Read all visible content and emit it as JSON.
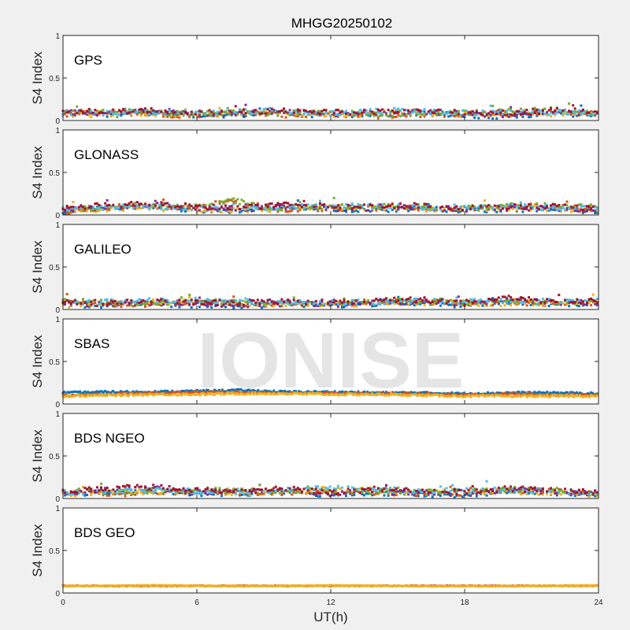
{
  "title": "MHGG20250102",
  "watermark": "IONISE",
  "chart_data": {
    "type": "scatter",
    "xlabel": "UT(h)",
    "ylabel": "S4 Index",
    "xlim": [
      0,
      24
    ],
    "ylim": [
      0,
      1
    ],
    "xticks": [
      0,
      6,
      12,
      18,
      24
    ],
    "yticks": [
      0,
      0.5,
      1
    ],
    "grid": false,
    "colors": [
      "#0072BD",
      "#D95319",
      "#EDB120",
      "#7E2F8E",
      "#77AC30",
      "#4DBEEE",
      "#A2142F"
    ],
    "panels": [
      {
        "name": "GPS",
        "series_count": 7,
        "series": [
          {
            "x": [
              0,
              2,
              4,
              6,
              8,
              10,
              12,
              14,
              16,
              18,
              20,
              22,
              24
            ],
            "y": [
              0.1,
              0.09,
              0.11,
              0.08,
              0.09,
              0.1,
              0.08,
              0.09,
              0.11,
              0.08,
              0.07,
              0.1,
              0.09
            ]
          },
          {
            "x": [
              0,
              2,
              4,
              6,
              8,
              10,
              12,
              14,
              16,
              18,
              20,
              22,
              24
            ],
            "y": [
              0.08,
              0.12,
              0.09,
              0.07,
              0.1,
              0.08,
              0.09,
              0.07,
              0.08,
              0.09,
              0.1,
              0.13,
              0.09
            ]
          },
          {
            "x": [
              0,
              3,
              6,
              9,
              12,
              15,
              18,
              21,
              24
            ],
            "y": [
              0.07,
              0.09,
              0.08,
              0.1,
              0.07,
              0.11,
              0.08,
              0.09,
              0.08
            ]
          }
        ]
      },
      {
        "name": "GLONASS",
        "series_count": 7,
        "series": [
          {
            "x": [
              0,
              2,
              4,
              6,
              8,
              10,
              12,
              14,
              16,
              18,
              20,
              22,
              24
            ],
            "y": [
              0.06,
              0.1,
              0.12,
              0.08,
              0.07,
              0.1,
              0.09,
              0.08,
              0.1,
              0.07,
              0.09,
              0.08,
              0.07
            ]
          },
          {
            "x": [
              0,
              3,
              6,
              7.5,
              9,
              12,
              15,
              18,
              21,
              24
            ],
            "y": [
              0.05,
              0.12,
              0.1,
              0.18,
              0.08,
              0.09,
              0.1,
              0.08,
              0.11,
              0.09
            ]
          },
          {
            "x": [
              0,
              4,
              8,
              12,
              16,
              20,
              24
            ],
            "y": [
              0.07,
              0.09,
              0.06,
              0.1,
              0.08,
              0.09,
              0.07
            ]
          }
        ]
      },
      {
        "name": "GALILEO",
        "series_count": 7,
        "series": [
          {
            "x": [
              0,
              2,
              4,
              6,
              8,
              10,
              12,
              14,
              16,
              18,
              20,
              22,
              24
            ],
            "y": [
              0.08,
              0.06,
              0.09,
              0.07,
              0.06,
              0.08,
              0.07,
              0.09,
              0.1,
              0.07,
              0.12,
              0.08,
              0.09
            ]
          },
          {
            "x": [
              0,
              3,
              6,
              9,
              12,
              15,
              18,
              21,
              24
            ],
            "y": [
              0.1,
              0.07,
              0.09,
              0.08,
              0.07,
              0.11,
              0.08,
              0.09,
              0.08
            ]
          },
          {
            "x": [
              0,
              4,
              8,
              12,
              16,
              20,
              24
            ],
            "y": [
              0.06,
              0.1,
              0.08,
              0.07,
              0.09,
              0.08,
              0.1
            ]
          }
        ]
      },
      {
        "name": "SBAS",
        "series_count": 3,
        "series": [
          {
            "x": [
              0,
              2,
              4,
              6,
              8,
              10,
              12,
              14,
              16,
              18,
              20,
              22,
              24
            ],
            "y": [
              0.14,
              0.15,
              0.15,
              0.16,
              0.17,
              0.15,
              0.15,
              0.14,
              0.14,
              0.13,
              0.14,
              0.14,
              0.13
            ]
          },
          {
            "x": [
              0,
              2,
              4,
              6,
              8,
              10,
              12,
              14,
              16,
              18,
              20,
              22,
              24
            ],
            "y": [
              0.1,
              0.12,
              0.13,
              0.14,
              0.14,
              0.13,
              0.13,
              0.12,
              0.12,
              0.11,
              0.12,
              0.11,
              0.11
            ]
          },
          {
            "x": [
              0,
              2,
              4,
              6,
              8,
              10,
              12,
              14,
              16,
              18,
              20,
              22,
              24
            ],
            "y": [
              0.09,
              0.1,
              0.11,
              0.11,
              0.12,
              0.12,
              0.11,
              0.11,
              0.1,
              0.09,
              0.09,
              0.09,
              0.09
            ]
          }
        ]
      },
      {
        "name": "BDS NGEO",
        "series_count": 7,
        "series": [
          {
            "x": [
              0,
              2,
              4,
              6,
              8,
              10,
              12,
              14,
              16,
              18,
              20,
              22,
              24
            ],
            "y": [
              0.07,
              0.1,
              0.12,
              0.08,
              0.07,
              0.1,
              0.06,
              0.09,
              0.07,
              0.06,
              0.1,
              0.08,
              0.07
            ]
          },
          {
            "x": [
              0,
              3,
              6,
              9,
              12,
              15,
              18,
              21,
              24
            ],
            "y": [
              0.09,
              0.07,
              0.1,
              0.08,
              0.09,
              0.07,
              0.08,
              0.11,
              0.07
            ]
          },
          {
            "x": [
              0,
              4,
              8,
              12,
              16,
              20,
              24
            ],
            "y": [
              0.06,
              0.09,
              0.07,
              0.12,
              0.08,
              0.09,
              0.06
            ]
          }
        ]
      },
      {
        "name": "BDS GEO",
        "series_count": 2,
        "series": [
          {
            "x": [
              0,
              4,
              8,
              12,
              16,
              20,
              24
            ],
            "y": [
              0.09,
              0.09,
              0.09,
              0.09,
              0.09,
              0.09,
              0.09
            ]
          },
          {
            "x": [
              0,
              4,
              8,
              12,
              16,
              20,
              24
            ],
            "y": [
              0.08,
              0.09,
              0.08,
              0.09,
              0.08,
              0.08,
              0.09
            ]
          }
        ]
      }
    ]
  }
}
